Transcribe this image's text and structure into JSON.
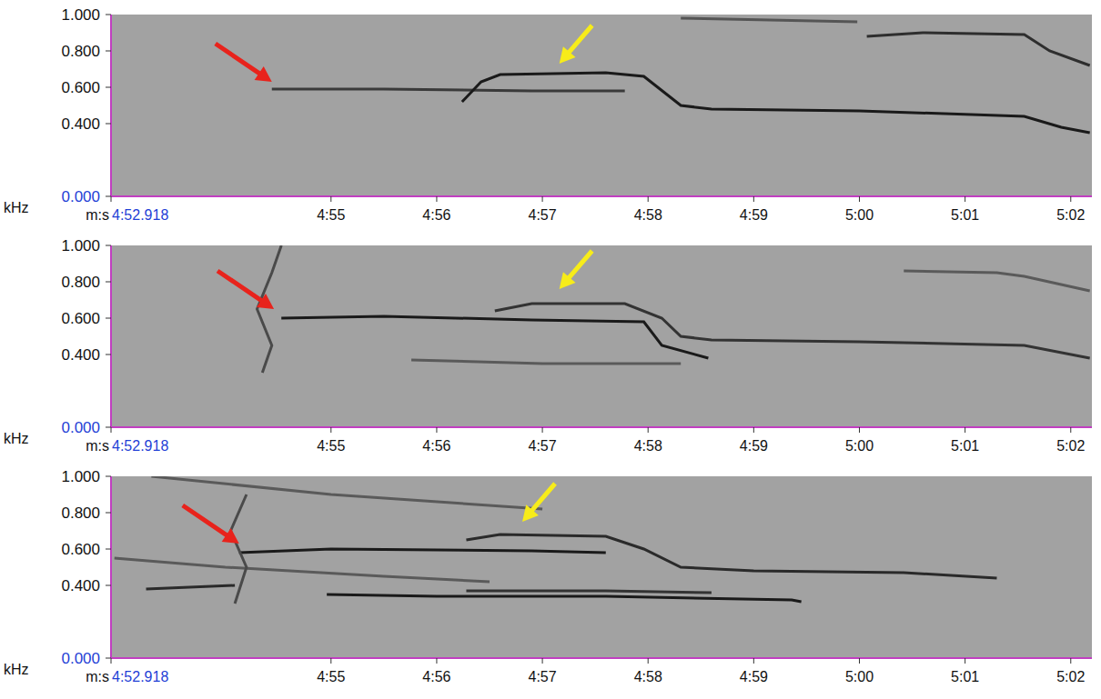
{
  "chart_data": [
    {
      "type": "line",
      "xlabel": "m:s",
      "ylabel": "kHz",
      "grid": false,
      "xlim": [
        292.918,
        302.2
      ],
      "ylim": [
        0,
        1
      ],
      "xticks": [
        {
          "value": 292.918,
          "label": "4:52.918"
        },
        {
          "value": 295,
          "label": "4:55"
        },
        {
          "value": 296,
          "label": "4:56"
        },
        {
          "value": 297,
          "label": "4:57"
        },
        {
          "value": 298,
          "label": "4:58"
        },
        {
          "value": 299,
          "label": "4:59"
        },
        {
          "value": 300,
          "label": "5:00"
        },
        {
          "value": 301,
          "label": "5:01"
        },
        {
          "value": 302,
          "label": "5:02"
        }
      ],
      "yticks": [
        {
          "value": 0,
          "label": "0.000"
        },
        {
          "value": 0.4,
          "label": "0.400"
        },
        {
          "value": 0.6,
          "label": "0.600"
        },
        {
          "value": 0.8,
          "label": "0.800"
        },
        {
          "value": 1,
          "label": "1.000"
        }
      ],
      "series": [
        {
          "color": "#3a3a3a",
          "x": [
            294.44,
            295.5,
            296.9,
            297.78
          ],
          "values": [
            0.59,
            0.59,
            0.58,
            0.58
          ]
        },
        {
          "color": "#1a1a1a",
          "x": [
            296.24,
            296.42,
            296.6,
            297.6,
            297.96,
            298.31,
            298.6,
            300,
            301.56,
            301.91,
            302.18
          ],
          "values": [
            0.52,
            0.63,
            0.67,
            0.68,
            0.66,
            0.5,
            0.48,
            0.47,
            0.44,
            0.38,
            0.35
          ]
        },
        {
          "color": "#2e2e2e",
          "x": [
            300.07,
            300.6,
            301.56,
            301.8,
            302.18
          ],
          "values": [
            0.88,
            0.9,
            0.89,
            0.8,
            0.72
          ]
        },
        {
          "color": "#555555",
          "x": [
            298.31,
            299.98
          ],
          "values": [
            0.98,
            0.96
          ]
        }
      ],
      "arrows": [
        {
          "x": 294.44,
          "y": 0.63,
          "color": "#e8231c",
          "direction": "down-right"
        },
        {
          "x": 297.16,
          "y": 0.73,
          "color": "#f7ec1a",
          "direction": "down-left"
        }
      ]
    },
    {
      "type": "line",
      "xlabel": "m:s",
      "ylabel": "kHz",
      "grid": false,
      "xlim": [
        292.918,
        302.2
      ],
      "ylim": [
        0,
        1
      ],
      "xticks": [
        {
          "value": 292.918,
          "label": "4:52.918"
        },
        {
          "value": 295,
          "label": "4:55"
        },
        {
          "value": 296,
          "label": "4:56"
        },
        {
          "value": 297,
          "label": "4:57"
        },
        {
          "value": 298,
          "label": "4:58"
        },
        {
          "value": 299,
          "label": "4:59"
        },
        {
          "value": 300,
          "label": "5:00"
        },
        {
          "value": 301,
          "label": "5:01"
        },
        {
          "value": 302,
          "label": "5:02"
        }
      ],
      "yticks": [
        {
          "value": 0,
          "label": "0.000"
        },
        {
          "value": 0.4,
          "label": "0.400"
        },
        {
          "value": 0.6,
          "label": "0.600"
        },
        {
          "value": 0.8,
          "label": "0.800"
        },
        {
          "value": 1,
          "label": "1.000"
        }
      ],
      "series": [
        {
          "color": "#1a1a1a",
          "x": [
            294.53,
            295.5,
            296.9,
            297.96,
            298.13,
            298.57
          ],
          "values": [
            0.6,
            0.61,
            0.59,
            0.58,
            0.45,
            0.38
          ]
        },
        {
          "color": "#333333",
          "x": [
            296.55,
            296.9,
            297.78,
            298.13,
            298.31,
            298.6,
            300,
            301.56,
            302.18
          ],
          "values": [
            0.64,
            0.68,
            0.68,
            0.6,
            0.5,
            0.48,
            0.47,
            0.45,
            0.38
          ]
        },
        {
          "color": "#5a5a5a",
          "x": [
            295.76,
            297,
            298.31
          ],
          "values": [
            0.37,
            0.35,
            0.35
          ]
        },
        {
          "color": "#5a5a5a",
          "x": [
            300.42,
            301.3,
            301.56,
            302.18
          ],
          "values": [
            0.86,
            0.85,
            0.83,
            0.75
          ]
        },
        {
          "color": "#4a4a4a",
          "x": [
            294.35,
            294.44,
            294.3,
            294.44,
            294.53
          ],
          "values": [
            0.3,
            0.45,
            0.65,
            0.85,
            1.0
          ]
        }
      ],
      "arrows": [
        {
          "x": 294.46,
          "y": 0.65,
          "color": "#e8231c",
          "direction": "down-right"
        },
        {
          "x": 297.16,
          "y": 0.76,
          "color": "#f7ec1a",
          "direction": "down-left"
        }
      ]
    },
    {
      "type": "line",
      "xlabel": "m:s",
      "ylabel": "kHz",
      "grid": false,
      "xlim": [
        292.918,
        302.2
      ],
      "ylim": [
        0,
        1
      ],
      "xticks": [
        {
          "value": 292.918,
          "label": "4:52.918"
        },
        {
          "value": 295,
          "label": "4:55"
        },
        {
          "value": 296,
          "label": "4:56"
        },
        {
          "value": 297,
          "label": "4:57"
        },
        {
          "value": 298,
          "label": "4:58"
        },
        {
          "value": 299,
          "label": "4:59"
        },
        {
          "value": 300,
          "label": "5:00"
        },
        {
          "value": 301,
          "label": "5:01"
        },
        {
          "value": 302,
          "label": "5:02"
        }
      ],
      "yticks": [
        {
          "value": 0,
          "label": "0.000"
        },
        {
          "value": 0.4,
          "label": "0.400"
        },
        {
          "value": 0.6,
          "label": "0.600"
        },
        {
          "value": 0.8,
          "label": "0.800"
        },
        {
          "value": 1,
          "label": "1.000"
        }
      ],
      "series": [
        {
          "color": "#1a1a1a",
          "x": [
            294.13,
            295,
            296.9,
            297.6
          ],
          "values": [
            0.58,
            0.6,
            0.59,
            0.58
          ]
        },
        {
          "color": "#2a2a2a",
          "x": [
            296.28,
            296.6,
            297.6,
            297.96,
            298.31,
            299,
            300.42,
            301.3
          ],
          "values": [
            0.65,
            0.68,
            0.67,
            0.6,
            0.5,
            0.48,
            0.47,
            0.44
          ]
        },
        {
          "color": "#2a2a2a",
          "x": [
            293.25,
            294.09
          ],
          "values": [
            0.38,
            0.4
          ]
        },
        {
          "color": "#1a1a1a",
          "x": [
            294.96,
            296,
            297.6,
            299.36,
            299.45
          ],
          "values": [
            0.35,
            0.34,
            0.34,
            0.32,
            0.31
          ]
        },
        {
          "color": "#333333",
          "x": [
            296.28,
            297.6,
            298.6
          ],
          "values": [
            0.37,
            0.37,
            0.36
          ]
        },
        {
          "color": "#5a5a5a",
          "x": [
            292.95,
            294,
            295.5,
            296.5
          ],
          "values": [
            0.55,
            0.5,
            0.45,
            0.42
          ]
        },
        {
          "color": "#5a5a5a",
          "x": [
            293.3,
            295,
            297
          ],
          "values": [
            1.0,
            0.9,
            0.82
          ]
        },
        {
          "color": "#4a4a4a",
          "x": [
            294.09,
            294.2,
            294.05,
            294.2
          ],
          "values": [
            0.3,
            0.5,
            0.7,
            0.9
          ]
        }
      ],
      "arrows": [
        {
          "x": 294.13,
          "y": 0.63,
          "color": "#e8231c",
          "direction": "down-right"
        },
        {
          "x": 296.81,
          "y": 0.75,
          "color": "#f7ec1a",
          "direction": "down-left"
        }
      ]
    }
  ]
}
